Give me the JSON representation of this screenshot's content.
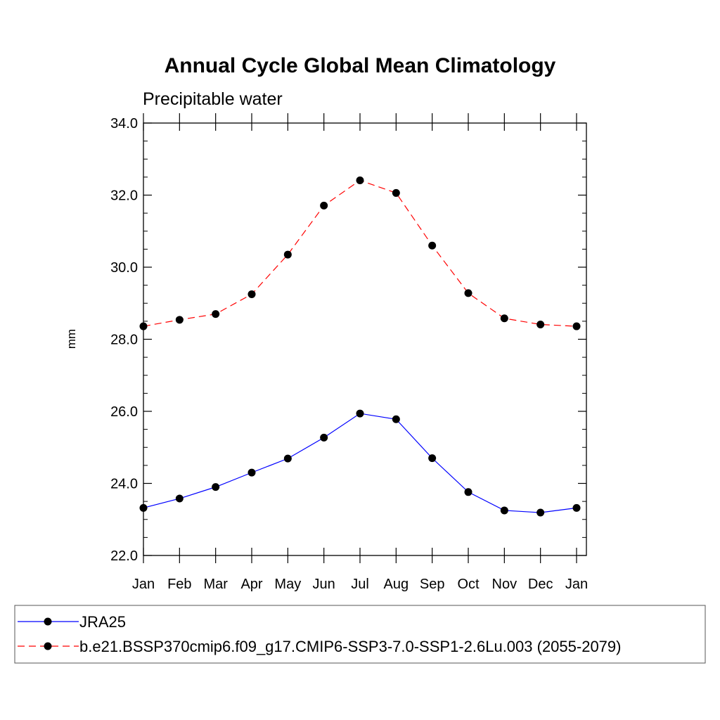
{
  "chart_data": {
    "type": "line",
    "title": "Annual Cycle Global Mean Climatology",
    "subtitle": "Precipitable water",
    "xlabel": "",
    "ylabel": "mm",
    "categories": [
      "Jan",
      "Feb",
      "Mar",
      "Apr",
      "May",
      "Jun",
      "Jul",
      "Aug",
      "Sep",
      "Oct",
      "Nov",
      "Dec",
      "Jan"
    ],
    "ylim": [
      22.0,
      34.0
    ],
    "yticks": [
      "22.0",
      "24.0",
      "26.0",
      "28.0",
      "30.0",
      "32.0",
      "34.0"
    ],
    "grid": false,
    "legend_position": "bottom",
    "series": [
      {
        "name": "JRA25",
        "color": "#0000ff",
        "line_style": "solid",
        "marker": "filled-circle",
        "values": [
          23.32,
          23.58,
          23.9,
          24.3,
          24.69,
          25.27,
          25.94,
          25.78,
          24.7,
          23.76,
          23.25,
          23.19,
          23.32
        ]
      },
      {
        "name": "b.e21.BSSP370cmip6.f09_g17.CMIP6-SSP3-7.0-SSP1-2.6Lu.003 (2055-2079)",
        "color": "#ff0000",
        "line_style": "dashed",
        "marker": "filled-circle",
        "values": [
          28.36,
          28.54,
          28.7,
          29.25,
          30.35,
          31.71,
          32.41,
          32.06,
          30.6,
          29.28,
          28.58,
          28.41,
          28.36
        ]
      }
    ]
  }
}
